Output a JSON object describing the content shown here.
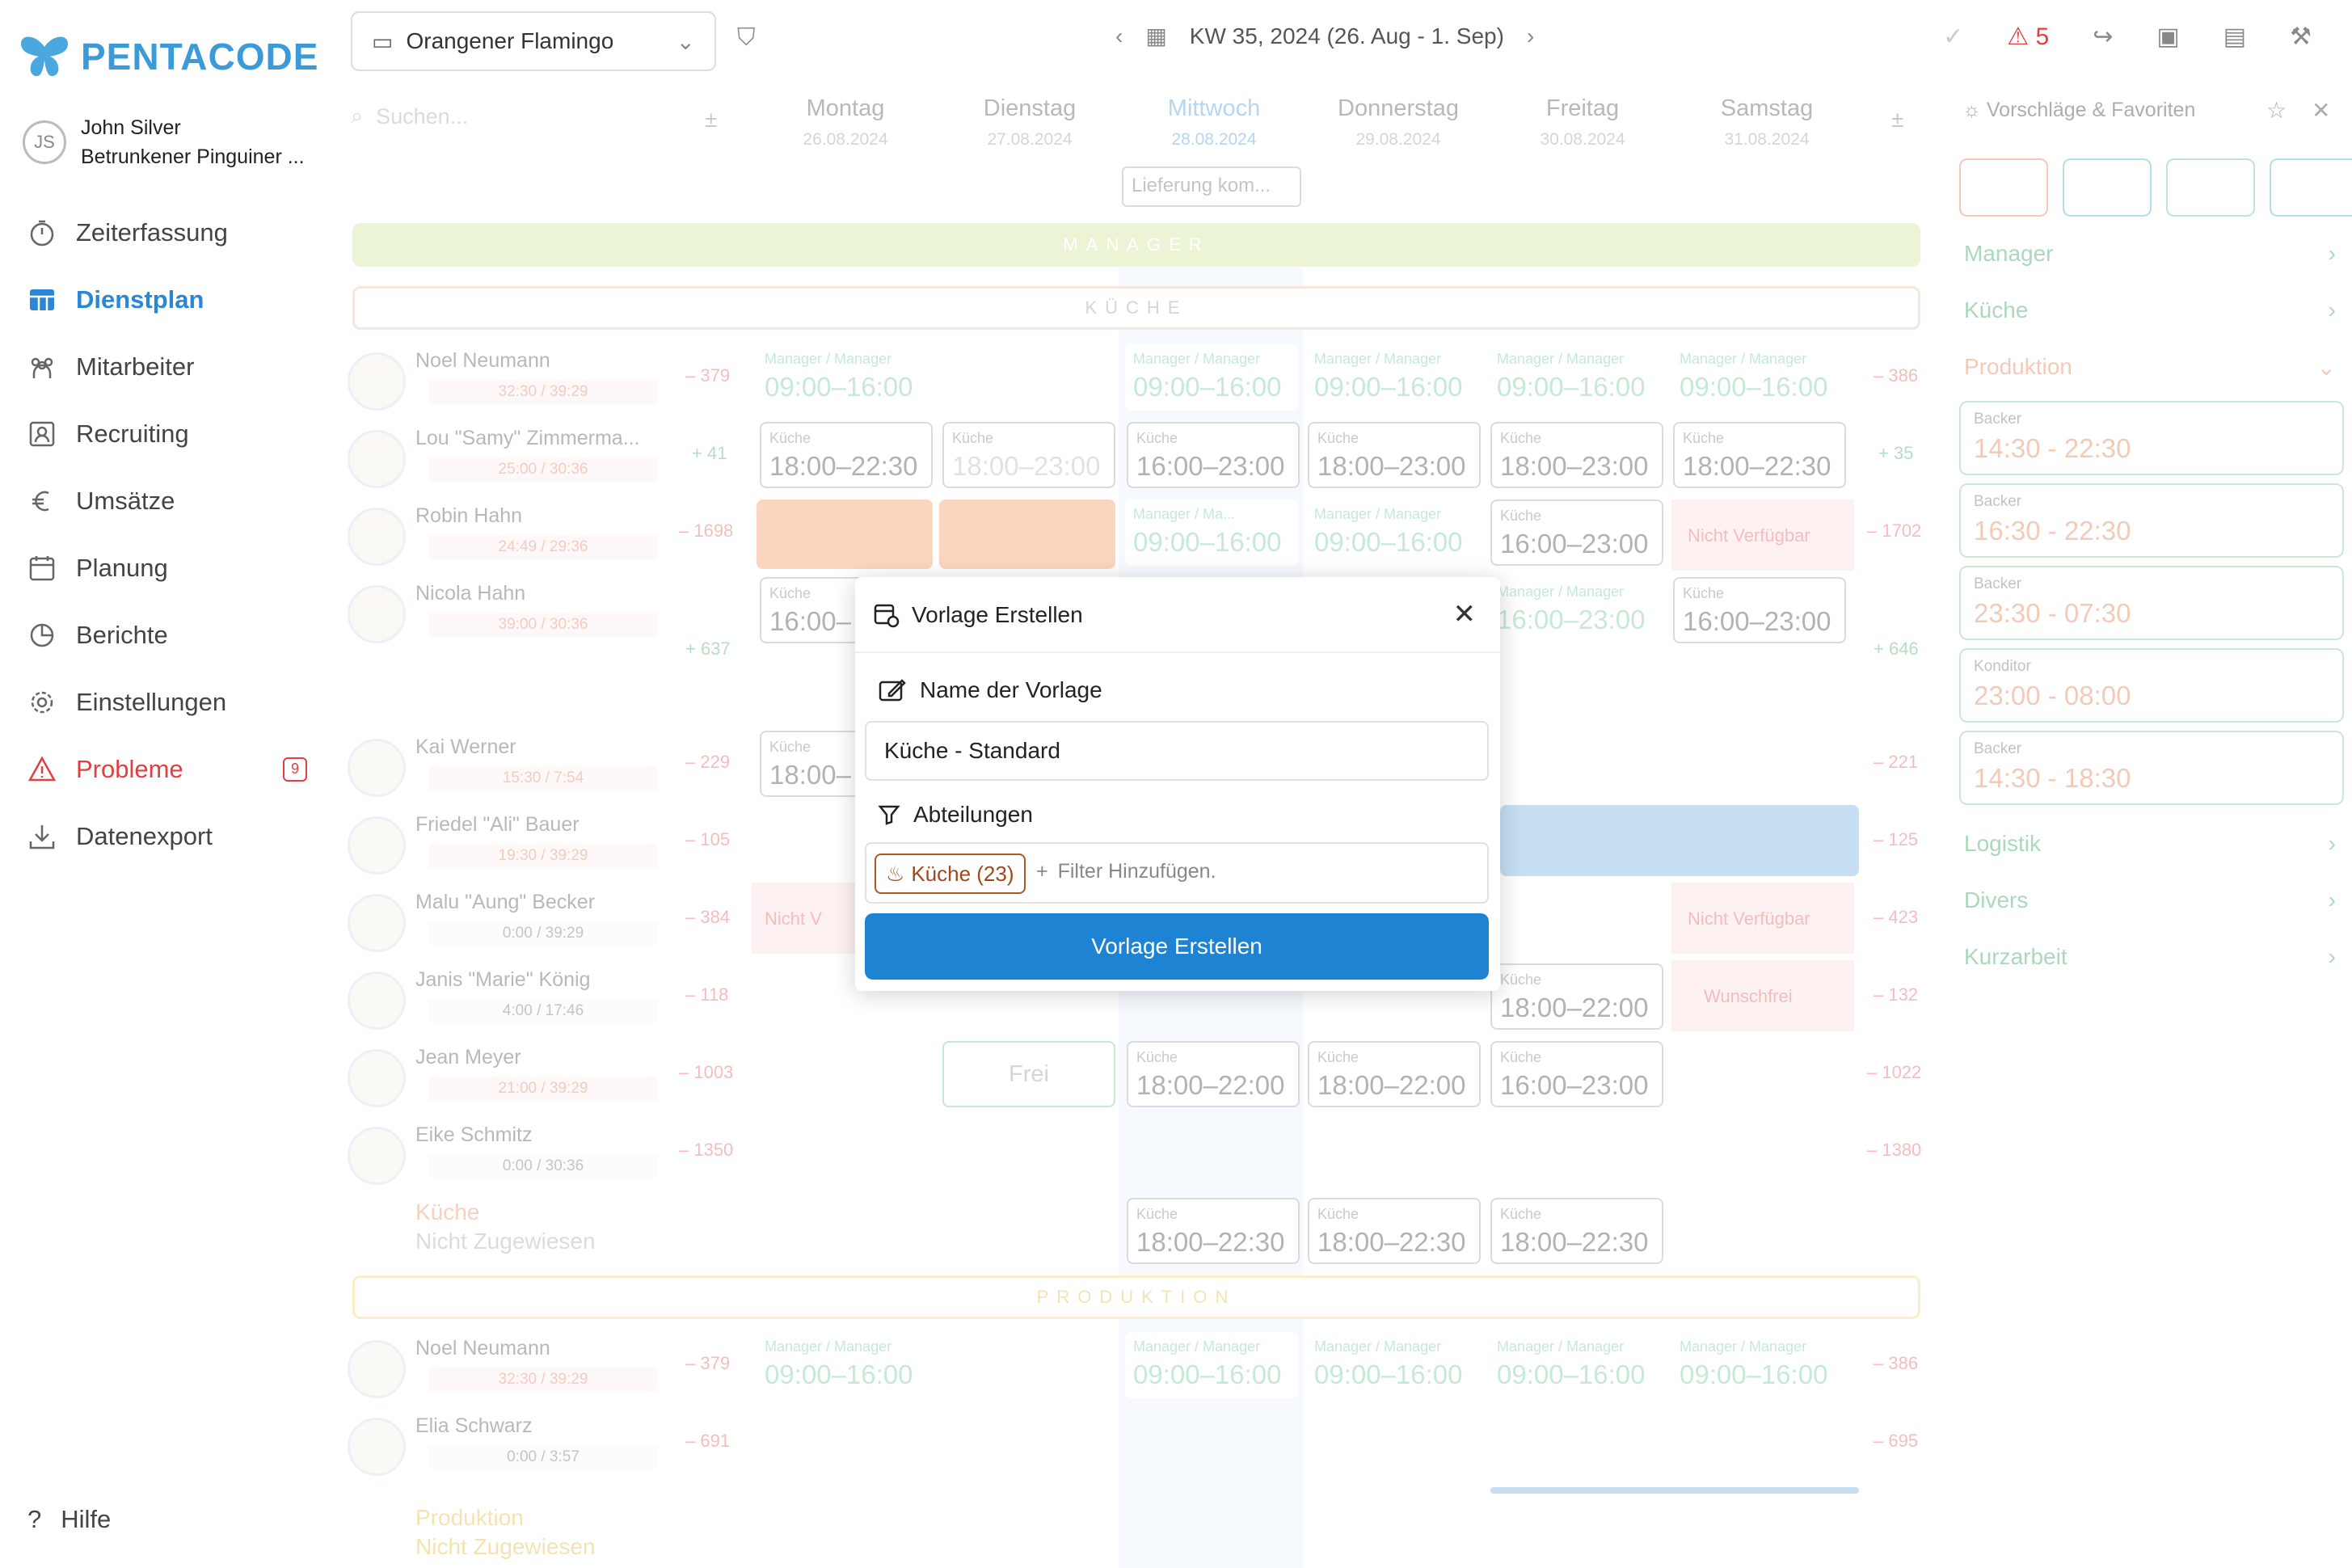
{
  "app": {
    "logo": "PENTACODE"
  },
  "user": {
    "initials": "JS",
    "name": "John Silver",
    "company": "Betrunkener Pinguiner ..."
  },
  "nav": [
    {
      "label": "Zeiterfassung",
      "icon": "stopwatch-icon"
    },
    {
      "label": "Dienstplan",
      "icon": "calendar-grid-icon",
      "active": true
    },
    {
      "label": "Mitarbeiter",
      "icon": "people-icon"
    },
    {
      "label": "Recruiting",
      "icon": "profile-card-icon"
    },
    {
      "label": "Umsätze",
      "icon": "euro-icon"
    },
    {
      "label": "Planung",
      "icon": "calendar-icon"
    },
    {
      "label": "Berichte",
      "icon": "pie-chart-icon"
    },
    {
      "label": "Einstellungen",
      "icon": "gear-icon"
    },
    {
      "label": "Probleme",
      "icon": "warning-icon",
      "badge": "9"
    },
    {
      "label": "Datenexport",
      "icon": "download-icon"
    }
  ],
  "help": "Hilfe",
  "topbar": {
    "location": "Orangener Flamingo",
    "week": "KW 35, 2024 (26. Aug - 1. Sep)",
    "warnings": "5"
  },
  "grid": {
    "search_placeholder": "Suchen...",
    "days": [
      {
        "name": "Montag",
        "date": "26.08.2024"
      },
      {
        "name": "Dienstag",
        "date": "27.08.2024"
      },
      {
        "name": "Mittwoch",
        "date": "28.08.2024",
        "today": true
      },
      {
        "name": "Donnerstag",
        "date": "29.08.2024"
      },
      {
        "name": "Freitag",
        "date": "30.08.2024"
      },
      {
        "name": "Samstag",
        "date": "31.08.2024"
      }
    ],
    "note": "Lieferung kom...",
    "depts": {
      "manager": "MANAGER",
      "kueche": "KÜCHE",
      "produktion": "PRODUKTION"
    },
    "employees": [
      {
        "name": "Noel Neumann",
        "hours": "32:30 / 39:29",
        "left": "– 379",
        "right": "– 386"
      },
      {
        "name": "Lou \"Samy\" Zimmerma...",
        "hours": "25:00 / 30:36",
        "left": "+ 41",
        "right": "+ 35"
      },
      {
        "name": "Robin Hahn",
        "hours": "24:49 / 29:36",
        "left": "– 1698",
        "right": "– 1702"
      },
      {
        "name": "Nicola Hahn",
        "hours": "39:00 / 30:36",
        "left": "+ 637",
        "right": "+ 646"
      },
      {
        "name": "Kai Werner",
        "hours": "15:30 / 7:54",
        "left": "– 229",
        "right": "– 221"
      },
      {
        "name": "Friedel \"Ali\" Bauer",
        "hours": "19:30 / 39:29",
        "left": "– 105",
        "right": "– 125"
      },
      {
        "name": "Malu \"Aung\" Becker",
        "hours": "0:00 / 39:29",
        "left": "– 384",
        "right": "– 423"
      },
      {
        "name": "Janis \"Marie\" König",
        "hours": "4:00 / 17:46",
        "left": "– 118",
        "right": "– 132"
      },
      {
        "name": "Jean Meyer",
        "hours": "21:00 / 39:29",
        "left": "– 1003",
        "right": "– 1022"
      },
      {
        "name": "Eike Schmitz",
        "hours": "0:00 / 30:36",
        "left": "– 1350",
        "right": "– 1380"
      }
    ],
    "unassigned_kueche": {
      "dept": "Küche",
      "label": "Nicht Zugewiesen"
    },
    "prod_employees": [
      {
        "name": "Noel Neumann",
        "hours": "32:30 / 39:29",
        "left": "– 379",
        "right": "– 386"
      },
      {
        "name": "Elia Schwarz",
        "hours": "0:00 / 3:57",
        "left": "– 691",
        "right": "– 695"
      }
    ],
    "unassigned_prod": {
      "dept": "Produktion",
      "label": "Nicht Zugewiesen"
    },
    "shift_labels": {
      "kueche": "Küche",
      "manager": "Manager / Manager",
      "manager_short": "Manager / Ma..."
    },
    "times": {
      "t1": "09:00–16:00",
      "t2": "18:00–22:30",
      "t3": "18:00–23:00",
      "t4": "16:00–23:00",
      "t5": "18:00–22:00",
      "t6": "16:00–",
      "t7": "18:00–"
    },
    "status": {
      "na": "Nicht Verfügbar",
      "na_short": "Nicht V",
      "wunsch": "Wunschfrei",
      "frei": "Frei"
    }
  },
  "rpanel": {
    "title": "Vorschläge & Favoriten",
    "cats": [
      "Manager",
      "Küche",
      "Produktion",
      "Logistik",
      "Divers",
      "Kurzarbeit"
    ],
    "cards": [
      {
        "label": "Backer",
        "time": "14:30 - 22:30"
      },
      {
        "label": "Backer",
        "time": "16:30 - 22:30"
      },
      {
        "label": "Backer",
        "time": "23:30 - 07:30"
      },
      {
        "label": "Konditor",
        "time": "23:00 - 08:00"
      },
      {
        "label": "Backer",
        "time": "14:30 - 18:30"
      }
    ]
  },
  "modal": {
    "title": "Vorlage Erstellen",
    "name_label": "Name der Vorlage",
    "name_value": "Küche - Standard",
    "dept_label": "Abteilungen",
    "chip": "Küche (23)",
    "add_filter": "Filter Hinzufügen.",
    "submit": "Vorlage Erstellen"
  },
  "colors": {
    "accent": "#1f83d3",
    "manager": "#c8e08a",
    "kueche": "#e8b8a0",
    "produktion": "#f0d060",
    "warn": "#e04040"
  }
}
